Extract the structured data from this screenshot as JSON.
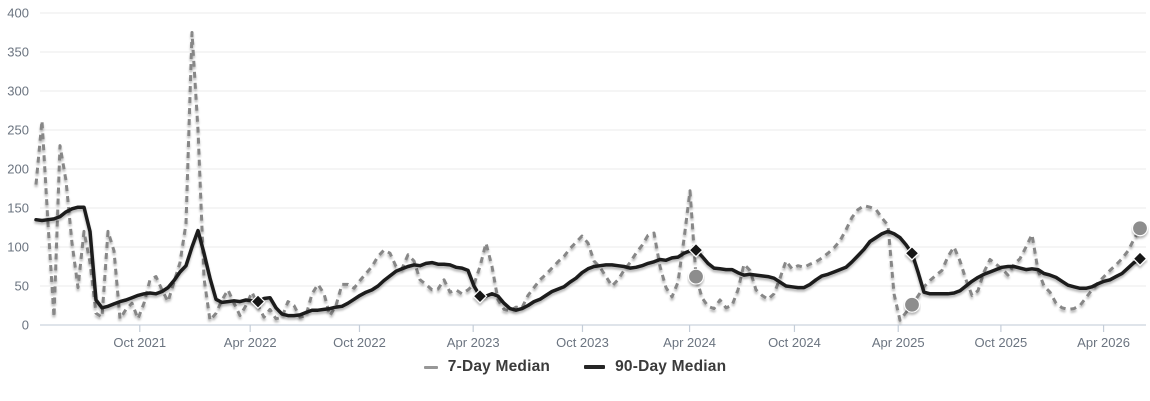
{
  "chart_data": {
    "type": "line",
    "title": "",
    "xlabel": "",
    "ylabel": "",
    "grid": "horizontal",
    "legend_position": "bottom-center",
    "y_axis": {
      "min": 0,
      "max": 400,
      "step": 50,
      "tick_labels": [
        "0",
        "50",
        "100",
        "150",
        "200",
        "250",
        "300",
        "350",
        "400"
      ]
    },
    "x_axis": {
      "ticks": [
        {
          "label": "Oct 2021",
          "pos": 0.094
        },
        {
          "label": "Apr 2022",
          "pos": 0.194
        },
        {
          "label": "Oct 2022",
          "pos": 0.293
        },
        {
          "label": "Apr 2023",
          "pos": 0.396
        },
        {
          "label": "Oct 2023",
          "pos": 0.495
        },
        {
          "label": "Apr 2024",
          "pos": 0.592
        },
        {
          "label": "Oct 2024",
          "pos": 0.687
        },
        {
          "label": "Apr 2025",
          "pos": 0.781
        },
        {
          "label": "Oct 2025",
          "pos": 0.874
        },
        {
          "label": "Apr 2026",
          "pos": 0.967
        }
      ]
    },
    "series": [
      {
        "name": "7-Day Median",
        "style": "dashed",
        "color": "#878787",
        "line_width": 3,
        "marker": {
          "shape": "circle",
          "color": "#8d8d8d"
        },
        "marker_indices": [
          110,
          146,
          184
        ],
        "values": [
          180,
          262,
          130,
          10,
          230,
          185,
          105,
          48,
          120,
          80,
          15,
          10,
          120,
          95,
          8,
          20,
          28,
          8,
          28,
          58,
          62,
          45,
          30,
          55,
          80,
          130,
          375,
          250,
          60,
          6,
          15,
          32,
          45,
          28,
          12,
          25,
          42,
          25,
          10,
          20,
          8,
          10,
          30,
          25,
          10,
          12,
          40,
          52,
          40,
          12,
          25,
          52,
          52,
          47,
          57,
          66,
          75,
          88,
          96,
          92,
          75,
          72,
          90,
          82,
          58,
          52,
          45,
          46,
          58,
          42,
          45,
          40,
          45,
          52,
          75,
          105,
          75,
          32,
          20,
          18,
          23,
          22,
          38,
          48,
          58,
          65,
          73,
          81,
          88,
          98,
          106,
          114,
          105,
          82,
          74,
          62,
          50,
          58,
          70,
          80,
          92,
          102,
          115,
          118,
          75,
          48,
          36,
          55,
          110,
          172,
          62,
          35,
          24,
          21,
          32,
          22,
          25,
          45,
          78,
          70,
          45,
          38,
          33,
          40,
          60,
          82,
          72,
          76,
          74,
          78,
          81,
          86,
          92,
          99,
          108,
          122,
          138,
          148,
          153,
          151,
          148,
          137,
          128,
          40,
          6,
          16,
          26,
          37,
          49,
          57,
          64,
          70,
          88,
          100,
          82,
          58,
          38,
          44,
          68,
          84,
          78,
          72,
          64,
          78,
          85,
          100,
          116,
          70,
          50,
          42,
          28,
          22,
          20,
          21,
          25,
          35,
          45,
          54,
          62,
          70,
          77,
          85,
          95,
          110,
          124
        ]
      },
      {
        "name": "90-Day Median",
        "style": "solid",
        "color": "#1d1d1d",
        "line_width": 3.5,
        "marker": {
          "shape": "diamond",
          "color": "#141414"
        },
        "marker_indices": [
          37,
          74,
          110,
          146,
          184
        ],
        "values": [
          135,
          134,
          135,
          136,
          139,
          145,
          149,
          151,
          151,
          120,
          32,
          22,
          24,
          27,
          30,
          32,
          35,
          38,
          40,
          41,
          40,
          43,
          48,
          57,
          68,
          76,
          100,
          121,
          92,
          60,
          33,
          29,
          30,
          31,
          30,
          32,
          31,
          30,
          34,
          35,
          22,
          14,
          12,
          12,
          13,
          16,
          19,
          19,
          20,
          21,
          23,
          24,
          28,
          33,
          38,
          42,
          45,
          50,
          57,
          63,
          69,
          72,
          75,
          77,
          76,
          79,
          80,
          78,
          78,
          77,
          74,
          73,
          70,
          50,
          37,
          37,
          40,
          37,
          28,
          21,
          19,
          21,
          25,
          30,
          33,
          38,
          43,
          46,
          49,
          55,
          60,
          67,
          72,
          75,
          76,
          77,
          77,
          76,
          75,
          73,
          74,
          76,
          79,
          81,
          84,
          83,
          86,
          87,
          92,
          95,
          96,
          88,
          79,
          73,
          72,
          71,
          71,
          67,
          64,
          65,
          64,
          63,
          62,
          60,
          55,
          50,
          49,
          48,
          48,
          52,
          58,
          63,
          65,
          68,
          71,
          74,
          81,
          89,
          97,
          107,
          112,
          117,
          120,
          117,
          112,
          103,
          92,
          68,
          42,
          40,
          40,
          40,
          40,
          41,
          44,
          50,
          56,
          61,
          65,
          68,
          71,
          74,
          75,
          75,
          73,
          71,
          72,
          71,
          66,
          64,
          61,
          56,
          51,
          49,
          47,
          47,
          49,
          53,
          56,
          58,
          62,
          66,
          73,
          80,
          85
        ]
      }
    ],
    "colors": {
      "grid_line": "#ebebeb",
      "axis_line": "#ccd4dd",
      "tick_mark": "#c4cdd8",
      "axis_text": "#6b7480",
      "legend_text": "#3b3b3b",
      "background": "#ffffff"
    }
  }
}
